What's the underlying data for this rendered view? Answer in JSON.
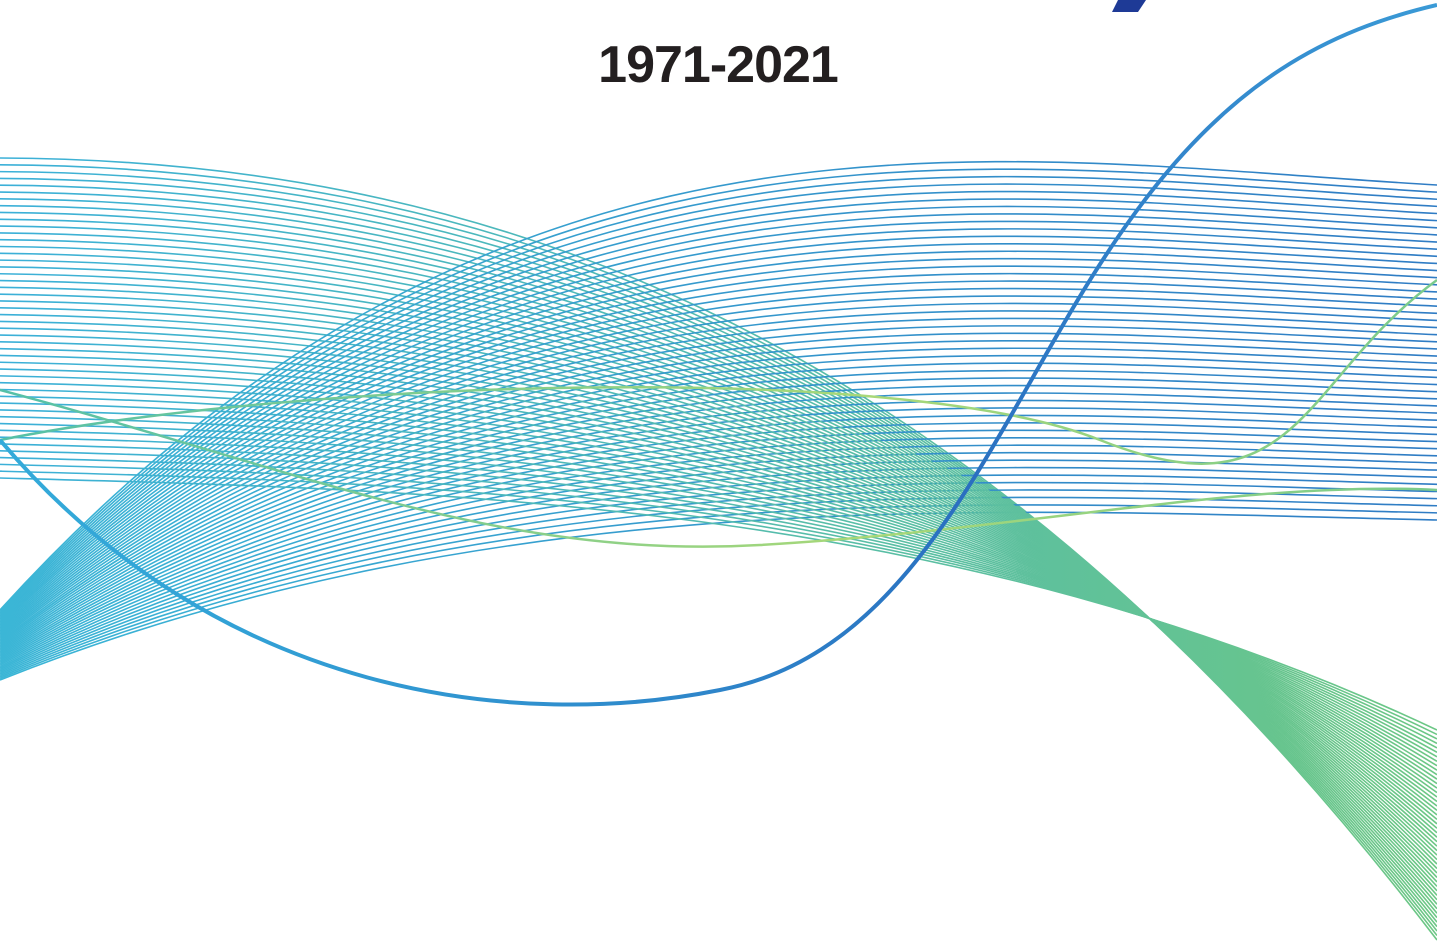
{
  "title": "1971-2021"
}
